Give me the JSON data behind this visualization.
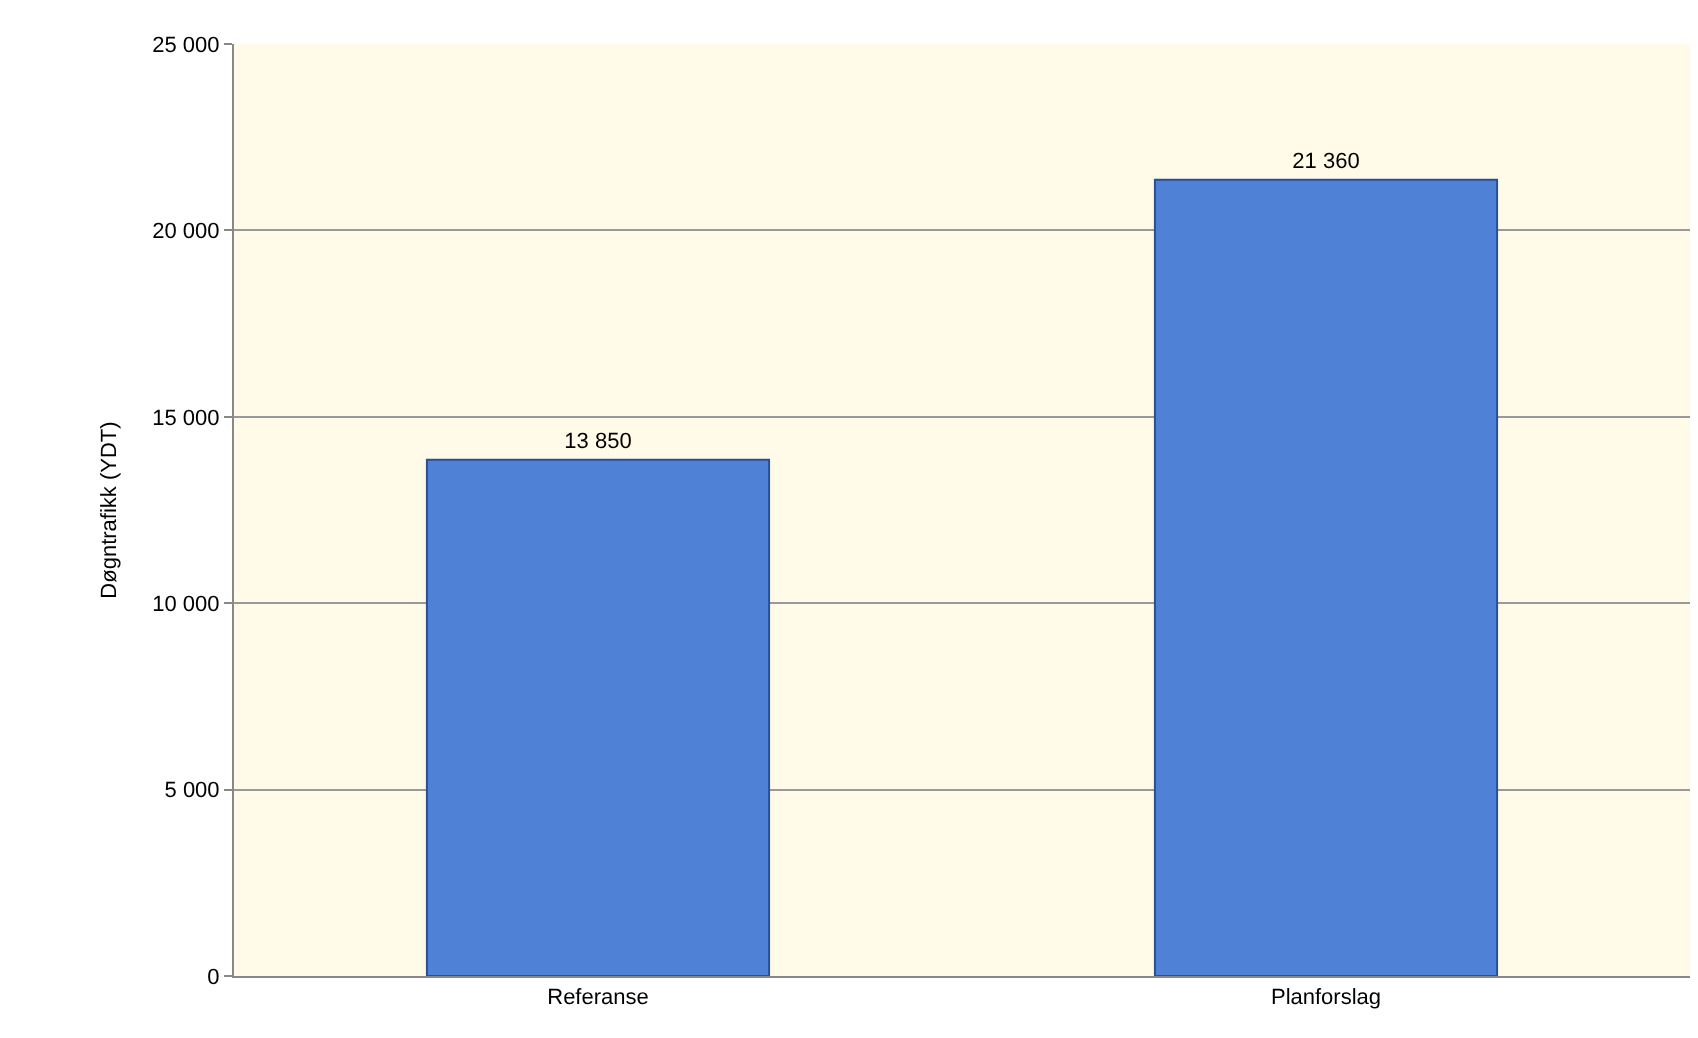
{
  "chart_data": {
    "type": "bar",
    "ylabel": "Døgntrafikk (YDT)",
    "categories": [
      "Referanse",
      "Planforslag"
    ],
    "values": [
      13850,
      21360
    ],
    "value_labels": [
      "13 850",
      "21 360"
    ],
    "color": "#4f81d6",
    "ylim": [
      0,
      25000
    ],
    "yticks": [
      {
        "value": 0,
        "label": "0"
      },
      {
        "value": 5000,
        "label": "5 000"
      },
      {
        "value": 10000,
        "label": "10 000"
      },
      {
        "value": 15000,
        "label": "15 000"
      },
      {
        "value": 20000,
        "label": "20 000"
      },
      {
        "value": 25000,
        "label": "25 000"
      }
    ],
    "grid": "y",
    "legend": false
  }
}
